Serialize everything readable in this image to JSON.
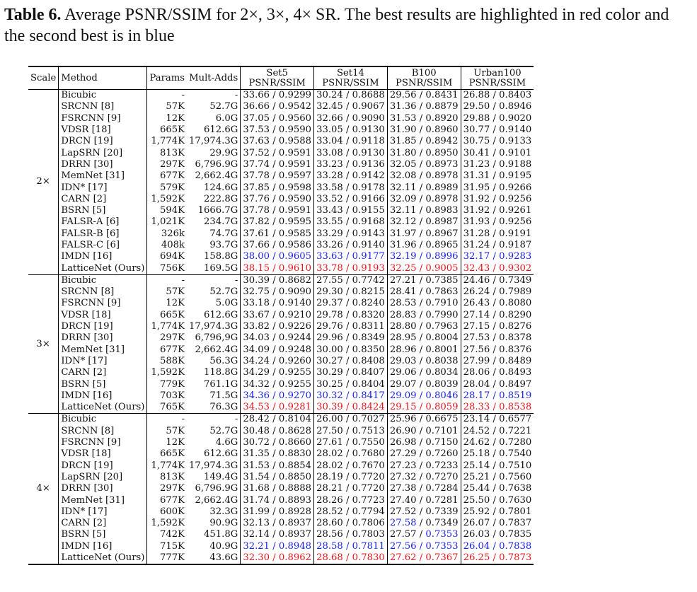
{
  "caption": {
    "label": "Table 6.",
    "text": " Average PSNR/SSIM for 2×, 3×, 4× SR. The best results are highlighted in red color and the second best is in blue"
  },
  "header": {
    "scale": "Scale",
    "method": "Method",
    "params": "Params",
    "multadds": "Mult-Adds",
    "datasets": [
      "Set5",
      "Set14",
      "B100",
      "Urban100"
    ],
    "metric": "PSNR/SSIM"
  },
  "colors": {
    "best": "#e8131b",
    "second": "#1a22e6"
  },
  "groups": [
    {
      "scale": "2×",
      "rows": [
        {
          "method": "Bicubic",
          "params": "-",
          "multadds": "-",
          "r": [
            [
              "33.66",
              "0.9299"
            ],
            [
              "30.24",
              "0.8688"
            ],
            [
              "29.56",
              "0.8431"
            ],
            [
              "26.88",
              "0.8403"
            ]
          ]
        },
        {
          "method": "SRCNN [8]",
          "params": "57K",
          "multadds": "52.7G",
          "r": [
            [
              "36.66",
              "0.9542"
            ],
            [
              "32.45",
              "0.9067"
            ],
            [
              "31.36",
              "0.8879"
            ],
            [
              "29.50",
              "0.8946"
            ]
          ]
        },
        {
          "method": "FSRCNN [9]",
          "params": "12K",
          "multadds": "6.0G",
          "r": [
            [
              "37.05",
              "0.9560"
            ],
            [
              "32.66",
              "0.9090"
            ],
            [
              "31.53",
              "0.8920"
            ],
            [
              "29.88",
              "0.9020"
            ]
          ]
        },
        {
          "method": "VDSR [18]",
          "params": "665K",
          "multadds": "612.6G",
          "r": [
            [
              "37.53",
              "0.9590"
            ],
            [
              "33.05",
              "0.9130"
            ],
            [
              "31.90",
              "0.8960"
            ],
            [
              "30.77",
              "0.9140"
            ]
          ]
        },
        {
          "method": "DRCN [19]",
          "params": "1,774K",
          "multadds": "17,974.3G",
          "r": [
            [
              "37.63",
              "0.9588"
            ],
            [
              "33.04",
              "0.9118"
            ],
            [
              "31.85",
              "0.8942"
            ],
            [
              "30.75",
              "0.9133"
            ]
          ]
        },
        {
          "method": "LapSRN [20]",
          "params": "813K",
          "multadds": "29.9G",
          "r": [
            [
              "37.52",
              "0.9591"
            ],
            [
              "33.08",
              "0.9130"
            ],
            [
              "31.80",
              "0.8950"
            ],
            [
              "30.41",
              "0.9101"
            ]
          ]
        },
        {
          "method": "DRRN [30]",
          "params": "297K",
          "multadds": "6,796.9G",
          "r": [
            [
              "37.74",
              "0.9591"
            ],
            [
              "33.23",
              "0.9136"
            ],
            [
              "32.05",
              "0.8973"
            ],
            [
              "31.23",
              "0.9188"
            ]
          ]
        },
        {
          "method": "MemNet [31]",
          "params": "677K",
          "multadds": "2,662.4G",
          "r": [
            [
              "37.78",
              "0.9597"
            ],
            [
              "33.28",
              "0.9142"
            ],
            [
              "32.08",
              "0.8978"
            ],
            [
              "31.31",
              "0.9195"
            ]
          ]
        },
        {
          "method": "IDN* [17]",
          "params": "579K",
          "multadds": "124.6G",
          "r": [
            [
              "37.85",
              "0.9598"
            ],
            [
              "33.58",
              "0.9178"
            ],
            [
              "32.11",
              "0.8989"
            ],
            [
              "31.95",
              "0.9266"
            ]
          ]
        },
        {
          "method": "CARN [2]",
          "params": "1,592K",
          "multadds": "222.8G",
          "r": [
            [
              "37.76",
              "0.9590"
            ],
            [
              "33.52",
              "0.9166"
            ],
            [
              "32.09",
              "0.8978"
            ],
            [
              "31.92",
              "0.9256"
            ]
          ]
        },
        {
          "method": "BSRN [5]",
          "params": "594K",
          "multadds": "1666.7G",
          "r": [
            [
              "37.78",
              "0.9591"
            ],
            [
              "33.43",
              "0.9155"
            ],
            [
              "32.11",
              "0.8983"
            ],
            [
              "31.92",
              "0.9261"
            ]
          ]
        },
        {
          "method": "FALSR-A [6]",
          "params": "1,021K",
          "multadds": "234.7G",
          "r": [
            [
              "37.82",
              "0.9595"
            ],
            [
              "33.55",
              "0.9168"
            ],
            [
              "32.12",
              "0.8987"
            ],
            [
              "31.93",
              "0.9256"
            ]
          ]
        },
        {
          "method": "FALSR-B [6]",
          "params": "326k",
          "multadds": "74.7G",
          "r": [
            [
              "37.61",
              "0.9585"
            ],
            [
              "33.29",
              "0.9143"
            ],
            [
              "31.97",
              "0.8967"
            ],
            [
              "31.28",
              "0.9191"
            ]
          ]
        },
        {
          "method": "FALSR-C [6]",
          "params": "408k",
          "multadds": "93.7G",
          "r": [
            [
              "37.66",
              "0.9586"
            ],
            [
              "33.26",
              "0.9140"
            ],
            [
              "31.96",
              "0.8965"
            ],
            [
              "31.24",
              "0.9187"
            ]
          ]
        },
        {
          "method": "IMDN [16]",
          "params": "694K",
          "multadds": "158.8G",
          "hl": "blue",
          "r": [
            [
              "38.00",
              "0.9605"
            ],
            [
              "33.63",
              "0.9177"
            ],
            [
              "32.19",
              "0.8996"
            ],
            [
              "32.17",
              "0.9283"
            ]
          ]
        },
        {
          "method": "LatticeNet (Ours)",
          "params": "756K",
          "multadds": "169.5G",
          "hl": "red",
          "r": [
            [
              "38.15",
              "0.9610"
            ],
            [
              "33.78",
              "0.9193"
            ],
            [
              "32.25",
              "0.9005"
            ],
            [
              "32.43",
              "0.9302"
            ]
          ]
        }
      ]
    },
    {
      "scale": "3×",
      "rows": [
        {
          "method": "Bicubic",
          "params": "-",
          "multadds": "-",
          "r": [
            [
              "30.39",
              "0.8682"
            ],
            [
              "27.55",
              "0.7742"
            ],
            [
              "27.21",
              "0.7385"
            ],
            [
              "24.46",
              "0.7349"
            ]
          ]
        },
        {
          "method": "SRCNN [8]",
          "params": "57K",
          "multadds": "52.7G",
          "r": [
            [
              "32.75",
              "0.9090"
            ],
            [
              "29.30",
              "0.8215"
            ],
            [
              "28.41",
              "0.7863"
            ],
            [
              "26.24",
              "0.7989"
            ]
          ]
        },
        {
          "method": "FSRCNN [9]",
          "params": "12K",
          "multadds": "5.0G",
          "r": [
            [
              "33.18",
              "0.9140"
            ],
            [
              "29.37",
              "0.8240"
            ],
            [
              "28.53",
              "0.7910"
            ],
            [
              "26.43",
              "0.8080"
            ]
          ]
        },
        {
          "method": "VDSR [18]",
          "params": "665K",
          "multadds": "612.6G",
          "r": [
            [
              "33.67",
              "0.9210"
            ],
            [
              "29.78",
              "0.8320"
            ],
            [
              "28.83",
              "0.7990"
            ],
            [
              "27.14",
              "0.8290"
            ]
          ]
        },
        {
          "method": "DRCN [19]",
          "params": "1,774K",
          "multadds": "17,974.3G",
          "r": [
            [
              "33.82",
              "0.9226"
            ],
            [
              "29.76",
              "0.8311"
            ],
            [
              "28.80",
              "0.7963"
            ],
            [
              "27.15",
              "0.8276"
            ]
          ]
        },
        {
          "method": "DRRN [30]",
          "params": "297K",
          "multadds": "6,796,9G",
          "r": [
            [
              "34.03",
              "0.9244"
            ],
            [
              "29.96",
              "0.8349"
            ],
            [
              "28.95",
              "0.8004"
            ],
            [
              "27.53",
              "0.8378"
            ]
          ]
        },
        {
          "method": "MemNet [31]",
          "params": "677K",
          "multadds": "2,662.4G",
          "r": [
            [
              "34.09",
              "0.9248"
            ],
            [
              "30.00",
              "0.8350"
            ],
            [
              "28.96",
              "0.8001"
            ],
            [
              "27.56",
              "0.8376"
            ]
          ]
        },
        {
          "method": "IDN* [17]",
          "params": "588K",
          "multadds": "56.3G",
          "r": [
            [
              "34.24",
              "0.9260"
            ],
            [
              "30.27",
              "0.8408"
            ],
            [
              "29.03",
              "0.8038"
            ],
            [
              "27.99",
              "0.8489"
            ]
          ]
        },
        {
          "method": "CARN [2]",
          "params": "1,592K",
          "multadds": "118.8G",
          "r": [
            [
              "34.29",
              "0.9255"
            ],
            [
              "30.29",
              "0.8407"
            ],
            [
              "29.06",
              "0.8034"
            ],
            [
              "28.06",
              "0.8493"
            ]
          ]
        },
        {
          "method": "BSRN [5]",
          "params": "779K",
          "multadds": "761.1G",
          "r": [
            [
              "34.32",
              "0.9255"
            ],
            [
              "30.25",
              "0.8404"
            ],
            [
              "29.07",
              "0.8039"
            ],
            [
              "28.04",
              "0.8497"
            ]
          ]
        },
        {
          "method": "IMDN [16]",
          "params": "703K",
          "multadds": "71.5G",
          "hl": "blue",
          "r": [
            [
              "34.36",
              "0.9270"
            ],
            [
              "30.32",
              "0.8417"
            ],
            [
              "29.09",
              "0.8046"
            ],
            [
              "28.17",
              "0.8519"
            ]
          ]
        },
        {
          "method": "LatticeNet (Ours)",
          "params": "765K",
          "multadds": "76.3G",
          "hl": "red",
          "r": [
            [
              "34.53",
              "0.9281"
            ],
            [
              "30.39",
              "0.8424"
            ],
            [
              "29.15",
              "0.8059"
            ],
            [
              "28.33",
              "0.8538"
            ]
          ]
        }
      ]
    },
    {
      "scale": "4×",
      "rows": [
        {
          "method": "Bicubic",
          "params": "-",
          "multadds": "-",
          "r": [
            [
              "28.42",
              "0.8104"
            ],
            [
              "26.00",
              "0.7027"
            ],
            [
              "25.96",
              "0.6675"
            ],
            [
              "23.14",
              "0.6577"
            ]
          ]
        },
        {
          "method": "SRCNN [8]",
          "params": "57K",
          "multadds": "52.7G",
          "r": [
            [
              "30.48",
              "0.8628"
            ],
            [
              "27.50",
              "0.7513"
            ],
            [
              "26.90",
              "0.7101"
            ],
            [
              "24.52",
              "0.7221"
            ]
          ]
        },
        {
          "method": "FSRCNN [9]",
          "params": "12K",
          "multadds": "4.6G",
          "r": [
            [
              "30.72",
              "0.8660"
            ],
            [
              "27.61",
              "0.7550"
            ],
            [
              "26.98",
              "0.7150"
            ],
            [
              "24.62",
              "0.7280"
            ]
          ]
        },
        {
          "method": "VDSR [18]",
          "params": "665K",
          "multadds": "612.6G",
          "r": [
            [
              "31.35",
              "0.8830"
            ],
            [
              "28.02",
              "0.7680"
            ],
            [
              "27.29",
              "0.7260"
            ],
            [
              "25.18",
              "0.7540"
            ]
          ]
        },
        {
          "method": "DRCN [19]",
          "params": "1,774K",
          "multadds": "17,974.3G",
          "r": [
            [
              "31.53",
              "0.8854"
            ],
            [
              "28.02",
              "0.7670"
            ],
            [
              "27.23",
              "0.7233"
            ],
            [
              "25.14",
              "0.7510"
            ]
          ]
        },
        {
          "method": "LapSRN [20]",
          "params": "813K",
          "multadds": "149.4G",
          "r": [
            [
              "31.54",
              "0.8850"
            ],
            [
              "28.19",
              "0.7720"
            ],
            [
              "27.32",
              "0.7270"
            ],
            [
              "25.21",
              "0.7560"
            ]
          ]
        },
        {
          "method": "DRRN [30]",
          "params": "297K",
          "multadds": "6,796.9G",
          "r": [
            [
              "31.68",
              "0.8888"
            ],
            [
              "28.21",
              "0.7720"
            ],
            [
              "27.38",
              "0.7284"
            ],
            [
              "25.44",
              "0.7638"
            ]
          ]
        },
        {
          "method": "MemNet [31]",
          "params": "677K",
          "multadds": "2,662.4G",
          "r": [
            [
              "31.74",
              "0.8893"
            ],
            [
              "28.26",
              "0.7723"
            ],
            [
              "27.40",
              "0.7281"
            ],
            [
              "25.50",
              "0.7630"
            ]
          ]
        },
        {
          "method": "IDN* [17]",
          "params": "600K",
          "multadds": "32.3G",
          "r": [
            [
              "31.99",
              "0.8928"
            ],
            [
              "28.52",
              "0.7794"
            ],
            [
              "27.52",
              "0.7339"
            ],
            [
              "25.92",
              "0.7801"
            ]
          ]
        },
        {
          "method": "CARN [2]",
          "params": "1,592K",
          "multadds": "90.9G",
          "r": [
            [
              "32.13",
              "0.8937"
            ],
            [
              "28.60",
              "0.7806"
            ],
            [
              "27.58",
              "0.7349"
            ],
            [
              "26.07",
              "0.7837"
            ]
          ],
          "cellhl": {
            "2": [
              "blue",
              "none"
            ]
          }
        },
        {
          "method": "BSRN [5]",
          "params": "742K",
          "multadds": "451.8G",
          "r": [
            [
              "32.14",
              "0.8937"
            ],
            [
              "28.56",
              "0.7803"
            ],
            [
              "27.57",
              "0.7353"
            ],
            [
              "26.03",
              "0.7835"
            ]
          ],
          "cellhl": {
            "2": [
              "none",
              "blue"
            ]
          }
        },
        {
          "method": "IMDN [16]",
          "params": "715K",
          "multadds": "40.9G",
          "hl": "blue",
          "r": [
            [
              "32.21",
              "0.8948"
            ],
            [
              "28.58",
              "0.7811"
            ],
            [
              "27.56",
              "0.7353"
            ],
            [
              "26.04",
              "0.7838"
            ]
          ]
        },
        {
          "method": "LatticeNet (Ours)",
          "params": "777K",
          "multadds": "43.6G",
          "hl": "red",
          "r": [
            [
              "32.30",
              "0.8962"
            ],
            [
              "28.68",
              "0.7830"
            ],
            [
              "27.62",
              "0.7367"
            ],
            [
              "26.25",
              "0.7873"
            ]
          ]
        }
      ]
    }
  ]
}
